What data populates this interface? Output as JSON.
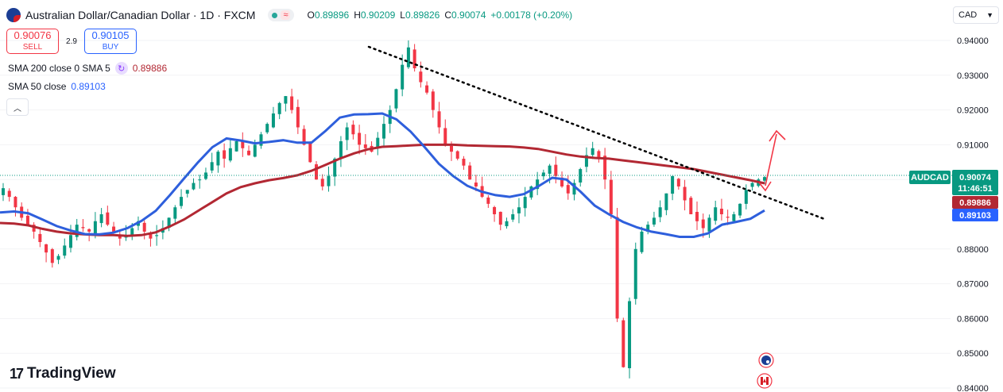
{
  "header": {
    "title": "Australian Dollar/Canadian Dollar · 1D · FXCM",
    "open_label": "O",
    "open": "0.89896",
    "high_label": "H",
    "high": "0.90209",
    "low_label": "L",
    "low": "0.89826",
    "close_label": "C",
    "close": "0.90074",
    "change": "+0.00178 (+0.20%)",
    "status_icon": "approx-icon"
  },
  "trade": {
    "sell_price": "0.90076",
    "sell_label": "SELL",
    "spread": "2.9",
    "buy_price": "0.90105",
    "buy_label": "BUY"
  },
  "indicators": {
    "sma200_label": "SMA 200 close 0 SMA 5",
    "sma200_value": "0.89886",
    "sma50_label": "SMA 50 close",
    "sma50_value": "0.89103"
  },
  "currency_selector": "CAD",
  "brand": "TradingView",
  "colors": {
    "up": "#089981",
    "down": "#f23645",
    "sma50": "#2e5fdc",
    "sma200": "#b22833",
    "accent": "#2962ff"
  },
  "chart_data": {
    "type": "candlestick",
    "symbol_label": "AUDCAD",
    "last_price": "0.90074",
    "countdown": "11:46:51",
    "sma200_badge": "0.89886",
    "sma50_badge": "0.89103",
    "ylim": [
      0.8398,
      0.9435
    ],
    "yticks": [
      "0.94000",
      "0.93000",
      "0.92000",
      "0.91000",
      "0.90000",
      "0.88000",
      "0.87000",
      "0.86000",
      "0.85000",
      "0.84000"
    ],
    "sma50": [
      0.8905,
      0.8908,
      0.8903,
      0.8885,
      0.8866,
      0.8853,
      0.8843,
      0.8842,
      0.8847,
      0.886,
      0.8881,
      0.891,
      0.8955,
      0.9003,
      0.905,
      0.9093,
      0.9118,
      0.9112,
      0.9104,
      0.9108,
      0.9113,
      0.9106,
      0.9106,
      0.914,
      0.9178,
      0.9187,
      0.9188,
      0.919,
      0.9173,
      0.9138,
      0.9093,
      0.9045,
      0.901,
      0.8982,
      0.8965,
      0.8955,
      0.895,
      0.8958,
      0.898,
      0.9005,
      0.9,
      0.8965,
      0.8925,
      0.89,
      0.8878,
      0.8862,
      0.885,
      0.8843,
      0.8835,
      0.8835,
      0.8845,
      0.887,
      0.8878,
      0.8887,
      0.8911
    ],
    "sma200": [
      0.8875,
      0.8873,
      0.8868,
      0.8858,
      0.885,
      0.8845,
      0.8842,
      0.884,
      0.884,
      0.8838,
      0.884,
      0.8848,
      0.8865,
      0.8885,
      0.891,
      0.8935,
      0.896,
      0.8978,
      0.8989,
      0.8998,
      0.9004,
      0.9012,
      0.9025,
      0.9042,
      0.906,
      0.9075,
      0.9087,
      0.9094,
      0.9096,
      0.9098,
      0.91,
      0.91,
      0.91,
      0.9098,
      0.9097,
      0.9096,
      0.9095,
      0.9092,
      0.9088,
      0.908,
      0.9072,
      0.9066,
      0.9062,
      0.906,
      0.9055,
      0.905,
      0.9045,
      0.904,
      0.9035,
      0.903,
      0.9022,
      0.9014,
      0.9006,
      0.8998,
      0.8989
    ],
    "candles_daily_close_approx": [
      0.8975,
      0.895,
      0.892,
      0.889,
      0.887,
      0.885,
      0.882,
      0.879,
      0.876,
      0.878,
      0.881,
      0.884,
      0.887,
      0.886,
      0.885,
      0.888,
      0.89,
      0.887,
      0.885,
      0.883,
      0.884,
      0.886,
      0.888,
      0.885,
      0.883,
      0.884,
      0.886,
      0.889,
      0.892,
      0.895,
      0.897,
      0.899,
      0.9,
      0.902,
      0.905,
      0.908,
      0.906,
      0.909,
      0.911,
      0.909,
      0.907,
      0.91,
      0.913,
      0.916,
      0.919,
      0.922,
      0.924,
      0.92,
      0.915,
      0.91,
      0.905,
      0.9,
      0.898,
      0.901,
      0.906,
      0.911,
      0.915,
      0.913,
      0.91,
      0.909,
      0.908,
      0.912,
      0.916,
      0.92,
      0.926,
      0.933,
      0.938,
      0.932,
      0.928,
      0.925,
      0.92,
      0.915,
      0.91,
      0.908,
      0.906,
      0.904,
      0.9,
      0.898,
      0.895,
      0.893,
      0.89,
      0.887,
      0.888,
      0.89,
      0.892,
      0.895,
      0.898,
      0.9,
      0.902,
      0.904,
      0.901,
      0.898,
      0.896,
      0.899,
      0.903,
      0.907,
      0.909,
      0.906,
      0.9,
      0.89,
      0.86,
      0.846,
      0.865,
      0.88,
      0.885,
      0.887,
      0.889,
      0.892,
      0.896,
      0.901,
      0.898,
      0.894,
      0.89,
      0.888,
      0.886,
      0.889,
      0.892,
      0.89,
      0.889,
      0.89,
      0.893,
      0.897,
      0.899,
      0.9,
      0.9007
    ]
  }
}
